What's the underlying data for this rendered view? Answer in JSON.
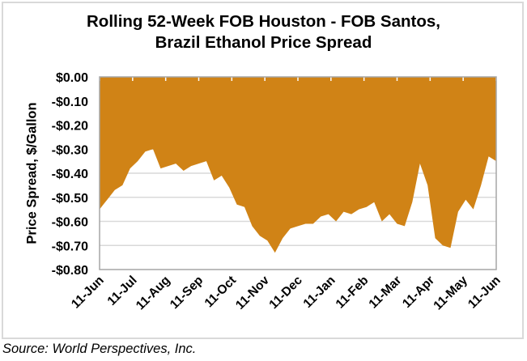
{
  "chart_data": {
    "type": "area",
    "title_lines": [
      "Rolling 52-Week FOB Houston - FOB Santos,",
      "Brazil Ethanol Price Spread"
    ],
    "xlabel": "",
    "ylabel": "Price Spread, $/Gallon",
    "ylim": [
      -0.8,
      0.0
    ],
    "yticks": [
      0.0,
      -0.1,
      -0.2,
      -0.3,
      -0.4,
      -0.5,
      -0.6,
      -0.7,
      -0.8
    ],
    "ytick_labels": [
      "$0.00",
      "-$0.10",
      "-$0.20",
      "-$0.30",
      "-$0.40",
      "-$0.50",
      "-$0.60",
      "-$0.70",
      "-$0.80"
    ],
    "xtick_labels": [
      "11-Jun",
      "11-Jul",
      "11-Aug",
      "11-Sep",
      "11-Oct",
      "11-Nov",
      "11-Dec",
      "11-Jan",
      "11-Feb",
      "11-Mar",
      "11-Apr",
      "11-May",
      "11-Jun"
    ],
    "grid": true,
    "fill_color": "#D08316",
    "series": [
      {
        "name": "FOB Houston - FOB Santos spread (weekly)",
        "x_weeks": [
          0,
          1,
          2,
          3,
          4,
          5,
          6,
          7,
          8,
          9,
          10,
          11,
          12,
          13,
          14,
          15,
          16,
          17,
          18,
          19,
          20,
          21,
          22,
          23,
          24,
          25,
          26,
          27,
          28,
          29,
          30,
          31,
          32,
          33,
          34,
          35,
          36,
          37,
          38,
          39,
          40,
          41,
          42,
          43,
          44,
          45,
          46,
          47,
          48,
          49,
          50,
          51,
          52
        ],
        "values": [
          -0.55,
          -0.51,
          -0.47,
          -0.45,
          -0.38,
          -0.35,
          -0.31,
          -0.3,
          -0.38,
          -0.37,
          -0.36,
          -0.39,
          -0.37,
          -0.36,
          -0.35,
          -0.43,
          -0.41,
          -0.46,
          -0.53,
          -0.54,
          -0.62,
          -0.66,
          -0.68,
          -0.73,
          -0.67,
          -0.63,
          -0.62,
          -0.61,
          -0.61,
          -0.58,
          -0.57,
          -0.6,
          -0.56,
          -0.57,
          -0.55,
          -0.54,
          -0.52,
          -0.6,
          -0.57,
          -0.61,
          -0.62,
          -0.52,
          -0.36,
          -0.45,
          -0.67,
          -0.7,
          -0.71,
          -0.56,
          -0.51,
          -0.55,
          -0.45,
          -0.33,
          -0.35
        ]
      }
    ],
    "source": "Source: World Perspectives, Inc."
  }
}
